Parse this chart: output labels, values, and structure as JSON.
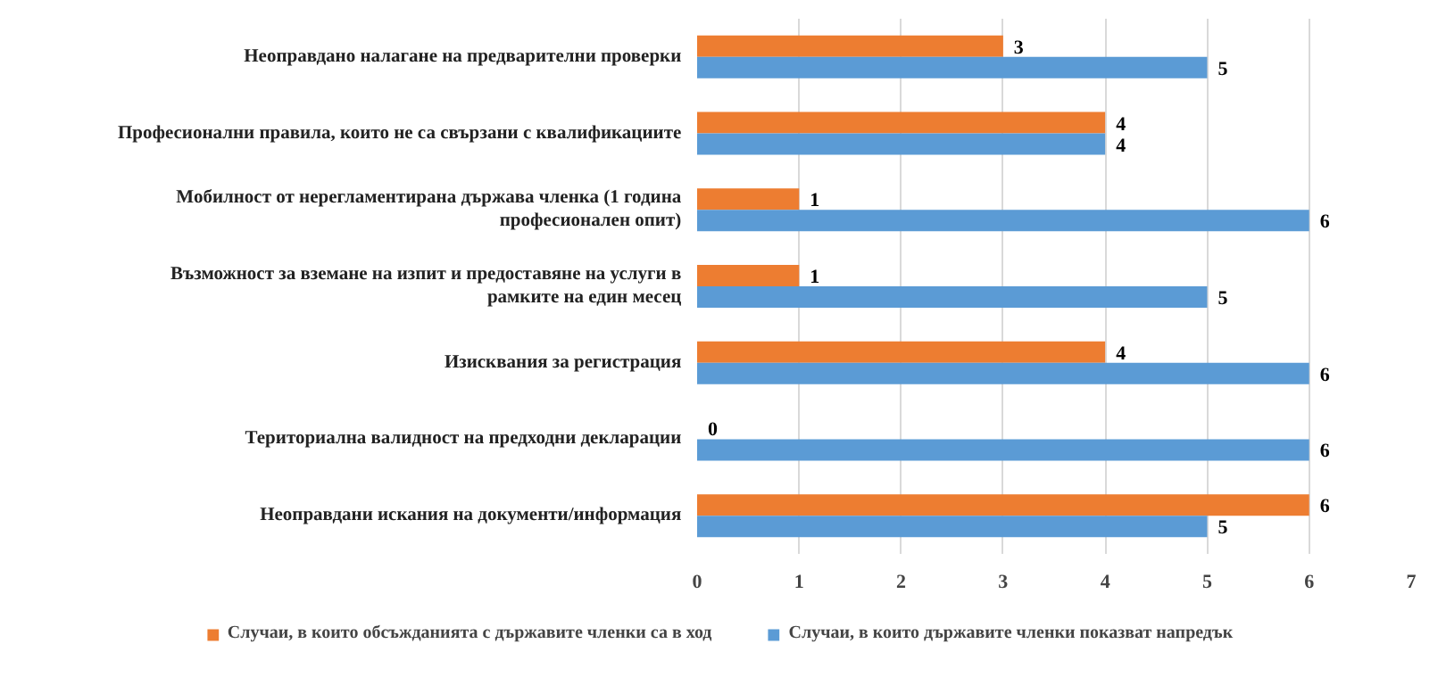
{
  "chart_data": {
    "type": "bar",
    "orientation": "horizontal",
    "categories": [
      "Неоправдано налагане на предварителни проверки",
      "Професионални правила, които не са свързани с квалификациите",
      "Мобилност от нерегламентирана държава членка (1 година професионален опит)",
      "Възможност за вземане на изпит и предоставяне на услуги в рамките на един месец",
      "Изисквания за регистрация",
      "Териториална валидност на предходни декларации",
      "Неоправдани искания на документи/информация"
    ],
    "series": [
      {
        "name": "Случаи, в които обсъжданията с държавите членки са в ход",
        "color": "#ed7d31",
        "values": [
          3,
          4,
          1,
          1,
          4,
          0,
          6
        ]
      },
      {
        "name": "Случаи, в които държавите членки показват напредък",
        "color": "#5b9bd5",
        "values": [
          5,
          4,
          6,
          5,
          6,
          6,
          5
        ]
      }
    ],
    "xlim": [
      0,
      7
    ],
    "xticks": [
      0,
      1,
      2,
      3,
      4,
      5,
      6,
      7
    ],
    "grid": "x",
    "legend": "bottom",
    "data_labels": true
  }
}
